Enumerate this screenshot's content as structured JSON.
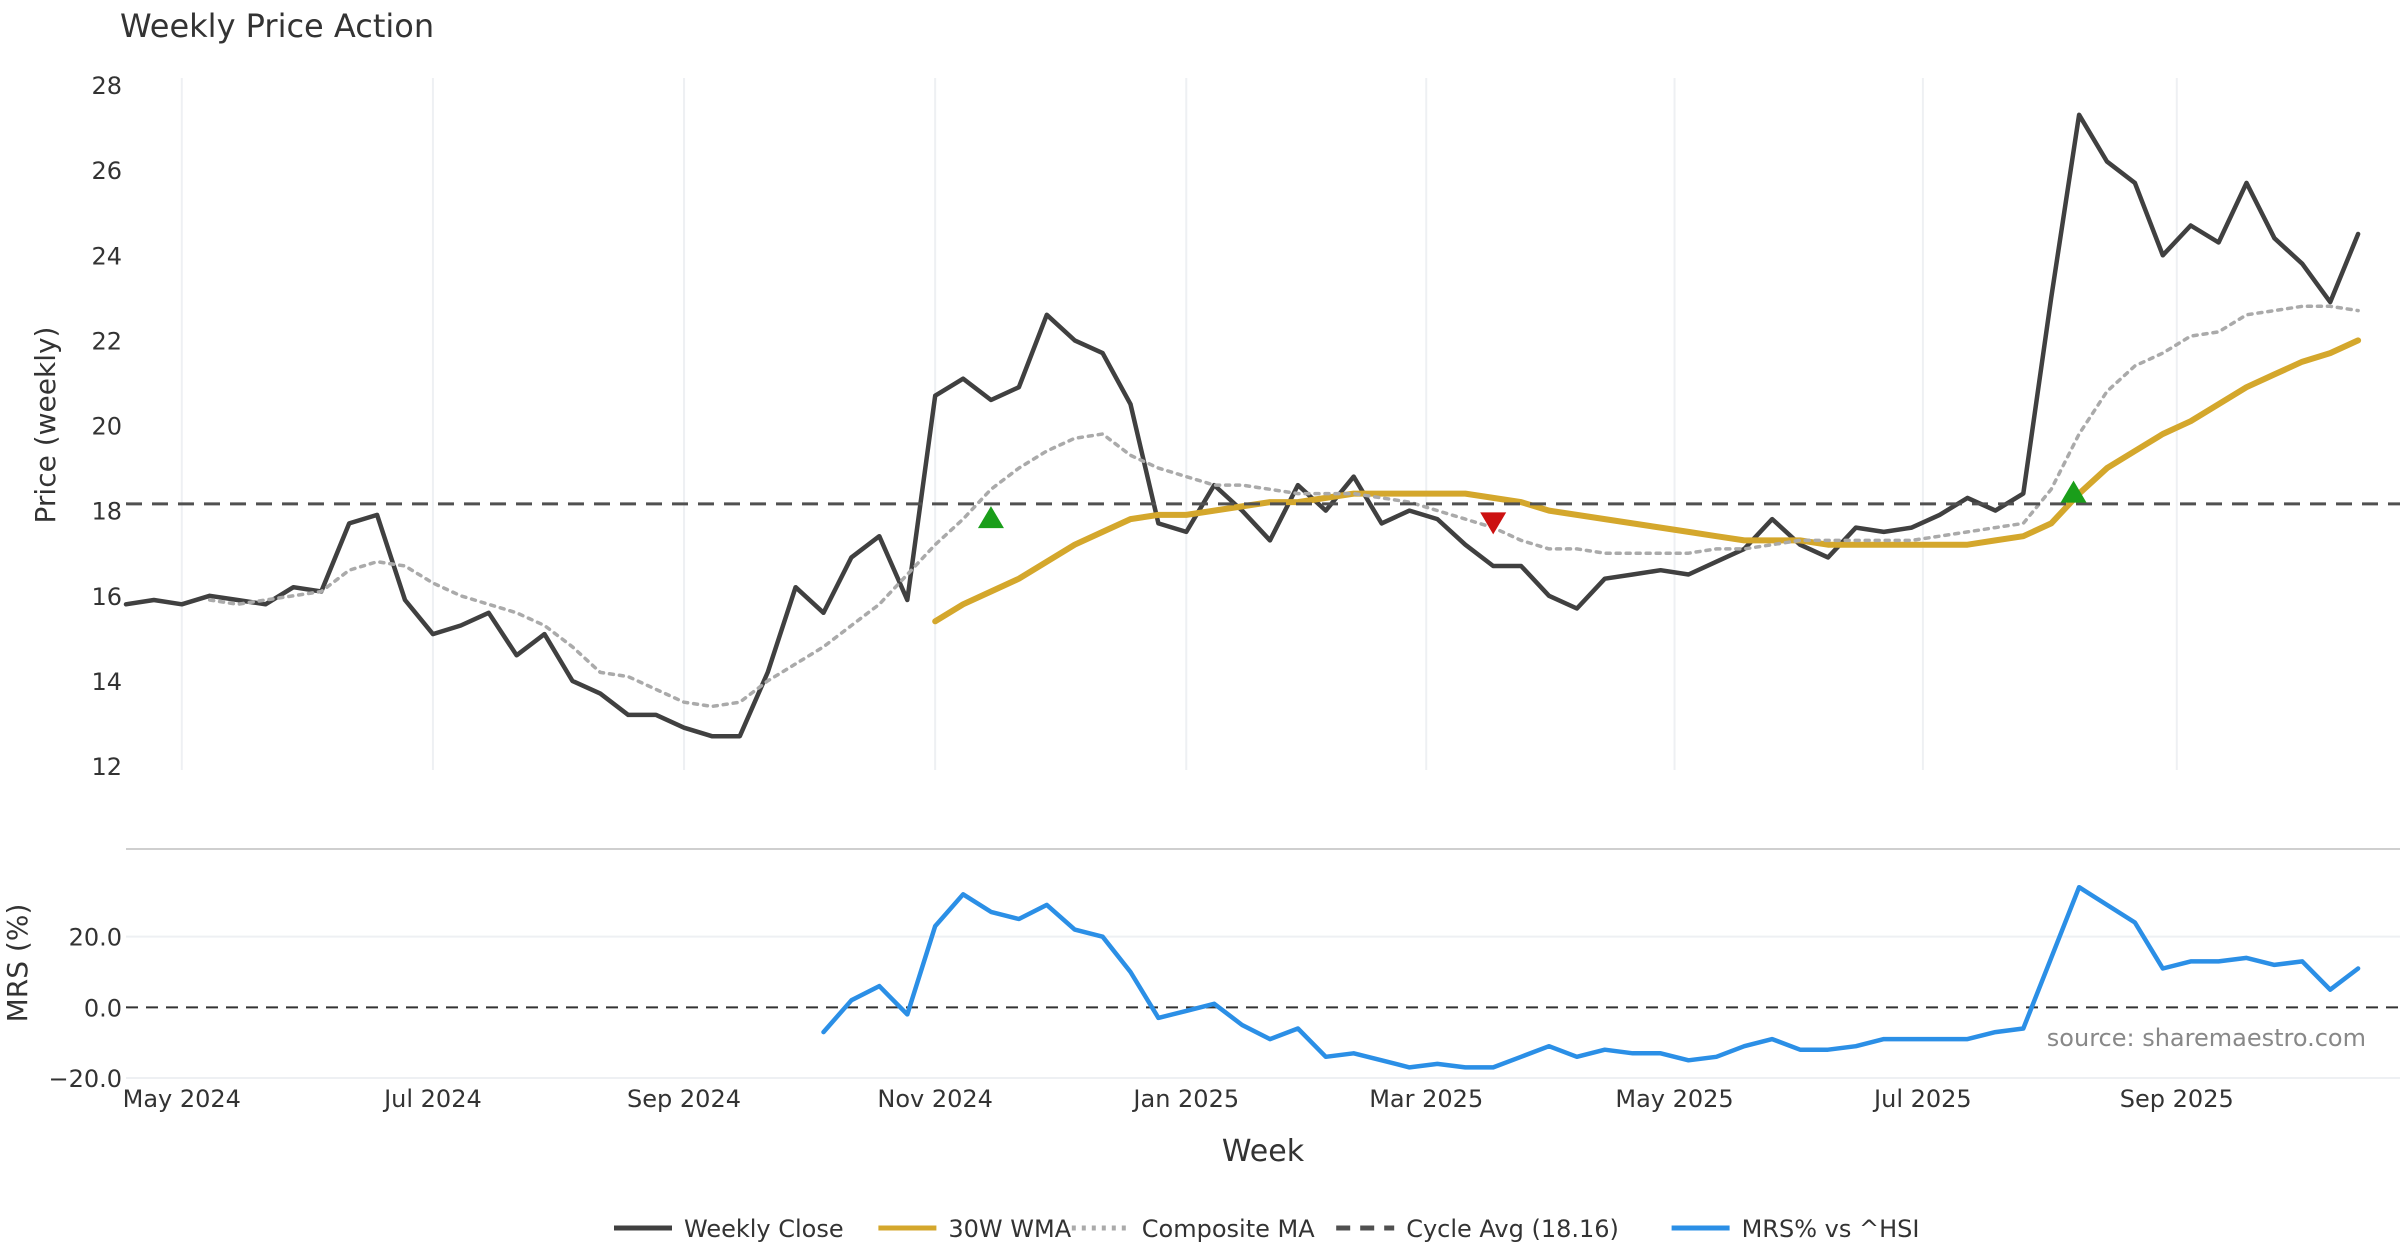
{
  "chart_data": {
    "title": "Weekly Price Action",
    "xlabel": "Week",
    "source": "source: sharemaestro.com",
    "x_ticks": [
      {
        "label": "May 2024",
        "week": 2
      },
      {
        "label": "Jul 2024",
        "week": 11
      },
      {
        "label": "Sep 2024",
        "week": 20
      },
      {
        "label": "Nov 2024",
        "week": 29
      },
      {
        "label": "Jan 2025",
        "week": 38
      },
      {
        "label": "Mar 2025",
        "week": 46.6
      },
      {
        "label": "May 2025",
        "week": 55.5
      },
      {
        "label": "Jul 2025",
        "week": 64.4
      },
      {
        "label": "Sep 2025",
        "week": 73.5
      }
    ],
    "x_range": [
      0,
      81.5
    ],
    "price_panel": {
      "type": "line",
      "ylabel": "Price (weekly)",
      "ylim": [
        12,
        28
      ],
      "yticks": [
        "28",
        "26",
        "24",
        "22",
        "20",
        "18",
        "16",
        "14",
        "12"
      ],
      "yticks_values": [
        28,
        26,
        24,
        22,
        20,
        18,
        16,
        14,
        12
      ],
      "series": [
        {
          "name": "Weekly Close",
          "color": "#404040",
          "style": "solid",
          "start": 0,
          "values": [
            15.8,
            15.9,
            15.8,
            16.0,
            15.9,
            15.8,
            16.2,
            16.1,
            17.7,
            17.9,
            15.9,
            15.1,
            15.3,
            15.6,
            14.6,
            15.1,
            14.0,
            13.7,
            13.2,
            13.2,
            12.9,
            12.7,
            12.7,
            14.2,
            16.2,
            15.6,
            16.9,
            17.4,
            15.9,
            20.7,
            21.1,
            20.6,
            20.9,
            22.6,
            22.0,
            21.7,
            20.5,
            17.7,
            17.5,
            18.6,
            18.0,
            17.3,
            18.6,
            18.0,
            18.8,
            17.7,
            18.0,
            17.8,
            17.2,
            16.7,
            16.7,
            16.0,
            15.7,
            16.4,
            16.5,
            16.6,
            16.5,
            16.8,
            17.1,
            17.8,
            17.2,
            16.9,
            17.6,
            17.5,
            17.6,
            17.9,
            18.3,
            18.0,
            18.4,
            23.0,
            27.3,
            26.2,
            25.7,
            24.0,
            24.7,
            24.3,
            25.7,
            24.4,
            23.8,
            22.9,
            24.5
          ]
        },
        {
          "name": "30W WMA",
          "color": "#d4a72c",
          "style": "solid",
          "start": 29,
          "values": [
            15.4,
            15.8,
            16.1,
            16.4,
            16.8,
            17.2,
            17.5,
            17.8,
            17.9,
            17.9,
            18.0,
            18.1,
            18.2,
            18.2,
            18.3,
            18.4,
            18.4,
            18.4,
            18.4,
            18.4,
            18.3,
            18.2,
            18.0,
            17.9,
            17.8,
            17.7,
            17.6,
            17.5,
            17.4,
            17.3,
            17.3,
            17.3,
            17.2,
            17.2,
            17.2,
            17.2,
            17.2,
            17.2,
            17.3,
            17.4,
            17.7,
            18.4,
            19.0,
            19.4,
            19.8,
            20.1,
            20.5,
            20.9,
            21.2,
            21.5,
            21.7,
            22.0
          ]
        },
        {
          "name": "Composite MA",
          "color": "#aaaaaa",
          "style": "dotted",
          "start": 3,
          "values": [
            15.9,
            15.8,
            15.9,
            16.0,
            16.1,
            16.6,
            16.8,
            16.7,
            16.3,
            16.0,
            15.8,
            15.6,
            15.3,
            14.8,
            14.2,
            14.1,
            13.8,
            13.5,
            13.4,
            13.5,
            14.0,
            14.4,
            14.8,
            15.3,
            15.8,
            16.5,
            17.2,
            17.8,
            18.5,
            19.0,
            19.4,
            19.7,
            19.8,
            19.3,
            19.0,
            18.8,
            18.6,
            18.6,
            18.5,
            18.4,
            18.4,
            18.4,
            18.3,
            18.2,
            18.0,
            17.8,
            17.6,
            17.3,
            17.1,
            17.1,
            17.0,
            17.0,
            17.0,
            17.0,
            17.1,
            17.1,
            17.2,
            17.3,
            17.3,
            17.3,
            17.3,
            17.3,
            17.4,
            17.5,
            17.6,
            17.7,
            18.5,
            19.8,
            20.8,
            21.4,
            21.7,
            22.1,
            22.2,
            22.6,
            22.7,
            22.8,
            22.8,
            22.7
          ]
        },
        {
          "name": "Cycle Avg (18.16)",
          "color": "#505050",
          "style": "dashed",
          "value": 18.16
        }
      ],
      "signals": [
        {
          "type": "buy",
          "color": "#1a9e1a",
          "week": 31,
          "price": 17.8
        },
        {
          "type": "sell",
          "color": "#cc1111",
          "week": 49,
          "price": 17.7
        },
        {
          "type": "buy",
          "color": "#1a9e1a",
          "week": 69.8,
          "price": 18.4
        }
      ]
    },
    "mrs_panel": {
      "type": "line",
      "ylabel": "MRS (%)",
      "ylim": [
        -20,
        40
      ],
      "yticks": [
        "20.0",
        "0.0",
        "−20.0"
      ],
      "yticks_values": [
        20,
        0,
        -20
      ],
      "zero_line": true,
      "series": [
        {
          "name": "MRS% vs ^HSI",
          "color": "#2b8fe6",
          "style": "solid",
          "start": 25,
          "values": [
            -7.0,
            2.0,
            6.0,
            -2.0,
            23.0,
            32.0,
            27.0,
            25.0,
            29.0,
            22.0,
            20.0,
            10.0,
            -3.0,
            -1.0,
            1.0,
            -5.0,
            -9.0,
            -6.0,
            -14.0,
            -13.0,
            -15.0,
            -17.0,
            -16.0,
            -17.0,
            -17.0,
            -14.0,
            -11.0,
            -14.0,
            -12.0,
            -13.0,
            -13.0,
            -15.0,
            -14.0,
            -11.0,
            -9.0,
            -12.0,
            -12.0,
            -11.0,
            -9.0,
            -9.0,
            -9.0,
            -9.0,
            -7.0,
            -6.0,
            14.0,
            34.0,
            29.0,
            24.0,
            11.0,
            13.0,
            13.0,
            14.0,
            12.0,
            13.0,
            5.0,
            11.0
          ]
        }
      ]
    },
    "legend": [
      {
        "label": "Weekly Close",
        "color": "#404040",
        "style": "solid"
      },
      {
        "label": "30W WMA",
        "color": "#d4a72c",
        "style": "solid"
      },
      {
        "label": "Composite MA",
        "color": "#aaaaaa",
        "style": "dotted"
      },
      {
        "label": "Cycle Avg (18.16)",
        "color": "#505050",
        "style": "dashed"
      },
      {
        "label": "MRS% vs ^HSI",
        "color": "#2b8fe6",
        "style": "solid"
      }
    ],
    "legend_position": "bottom-center"
  }
}
